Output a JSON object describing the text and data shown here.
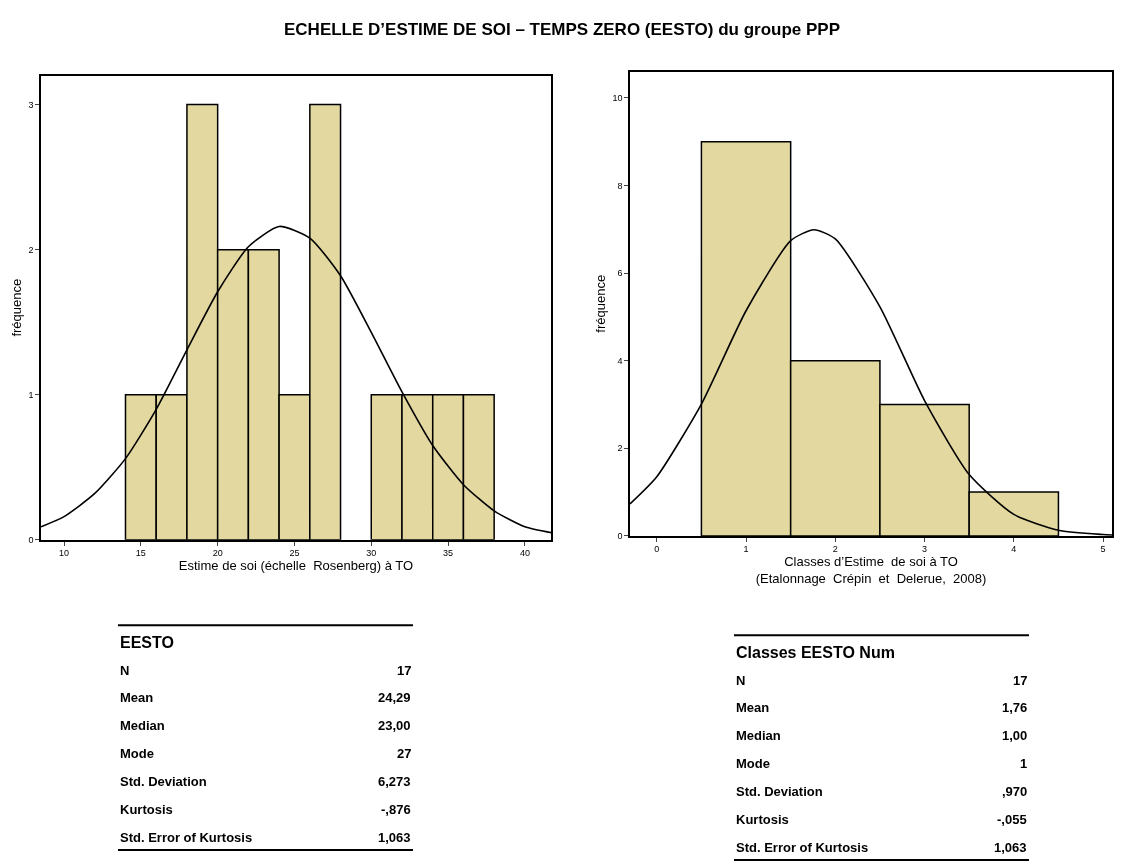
{
  "chart_data": [
    {
      "type": "histogram",
      "title": "ECHELLE D’ESTIME DE SOI – TEMPS ZERO (EESTO) du groupe PPP",
      "xlabel": "Estime de soi (échelle  Rosenberg) à TO",
      "ylabel": "fréquence",
      "bins": [
        14,
        16,
        18,
        20,
        22,
        24,
        26,
        28,
        30,
        32,
        34,
        36,
        38
      ],
      "values": [
        1,
        1,
        3,
        2,
        2,
        1,
        3,
        0,
        1,
        1,
        1,
        1
      ],
      "color": "#e3d89f",
      "series": [
        {
          "type": "line",
          "color": "#000000",
          "x": [
            8.5,
            10,
            12,
            14,
            16,
            18,
            20,
            22,
            24,
            26,
            28,
            30,
            32,
            34,
            36,
            38,
            40,
            41.7
          ],
          "values": [
            0.09,
            0.16,
            0.32,
            0.56,
            0.9,
            1.31,
            1.71,
            2.02,
            2.16,
            2.08,
            1.82,
            1.43,
            1.02,
            0.65,
            0.38,
            0.2,
            0.09,
            0.05
          ]
        }
      ],
      "xlim": [
        8.5,
        41.7
      ],
      "xticks": [
        10,
        15,
        20,
        25,
        30,
        35,
        40
      ],
      "ylim": [
        0,
        3.2
      ],
      "yticks": [
        0,
        1,
        2,
        3
      ]
    },
    {
      "type": "histogram",
      "xlabel": "Classes d’Estime  de soi à TO\n(Etalonnage  Crépin  et  Delerue,  2008)",
      "ylabel": "fréquence",
      "bins": [
        0.5,
        1.5,
        2.5,
        3.5,
        4.5
      ],
      "values": [
        9,
        4,
        3,
        1
      ],
      "color": "#e3d89f",
      "series": [
        {
          "type": "line",
          "color": "#000000",
          "x": [
            -0.3,
            0,
            0.5,
            1,
            1.5,
            1.76,
            2,
            2.5,
            3,
            3.5,
            4,
            4.5,
            5,
            5.1
          ],
          "values": [
            0.73,
            1.35,
            3.01,
            5.14,
            6.74,
            6.99,
            6.78,
            5.23,
            3.09,
            1.4,
            0.49,
            0.13,
            0.03,
            0.02
          ]
        }
      ],
      "xlim": [
        -0.3,
        5.1
      ],
      "xticks": [
        0,
        1,
        2,
        3,
        4,
        5
      ],
      "ylim": [
        0,
        10.6
      ],
      "yticks": [
        0,
        2,
        4,
        6,
        8,
        10
      ]
    },
    {
      "type": "other",
      "title": "EESTO",
      "annotations": [
        "N",
        "17",
        "Mean",
        "24,29",
        "Median",
        "23,00",
        "Mode",
        "27",
        "Std. Deviation",
        "6,273",
        "Kurtosis",
        "-,876",
        "Std. Error of Kurtosis",
        "1,063"
      ]
    },
    {
      "type": "other",
      "title": "Classes EESTO Num",
      "annotations": [
        "N",
        "17",
        "Mean",
        "1,76",
        "Median",
        "1,00",
        "Mode",
        "1",
        "Std. Deviation",
        ",970",
        "Kurtosis",
        "-,055",
        "Std. Error of Kurtosis",
        "1,063"
      ]
    }
  ]
}
